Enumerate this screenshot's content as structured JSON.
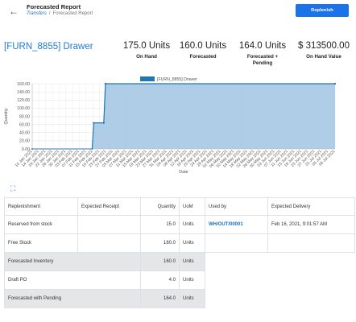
{
  "header": {
    "title": "Forecasted Report",
    "breadcrumb_parent": "Transfers",
    "breadcrumb_separator": "/",
    "breadcrumb_current": "Forecasted Report",
    "replenish_label": "Replenish",
    "back_icon": "arrow-left-icon"
  },
  "product": {
    "name": "[FURN_8855] Drawer"
  },
  "stats": [
    {
      "value": "175.0 Units",
      "label": "On Hand"
    },
    {
      "value": "160.0 Units",
      "label": "Forecasted"
    },
    {
      "value": "164.0 Units",
      "label": "Forecasted + Pending"
    },
    {
      "value": "$ 313500.00",
      "label": "On Hand Value"
    }
  ],
  "chart_data": {
    "type": "line",
    "legend": "[FURN_8855] Drawer",
    "legend_position": "top",
    "xlabel": "Date",
    "ylabel": "Quantity",
    "ylim": [
      0,
      160
    ],
    "y_ticks": [
      "0.00",
      "20.00",
      "40.00",
      "60.00",
      "80.00",
      "100.00",
      "120.00",
      "140.00",
      "160.00"
    ],
    "x_ticks": [
      "10 Jan 2021",
      "14 Jan 2021",
      "18 Jan 2021",
      "22 Jan 2021",
      "26 Jan 2021",
      "30 Jan 2021",
      "03 Feb 2021",
      "07 Feb 2021",
      "11 Feb 2021",
      "15 Feb 2021",
      "19 Feb 2021",
      "23 Feb 2021",
      "27 Feb 2021",
      "03 Mar 2021",
      "07 Mar 2021",
      "11 Mar 2021",
      "15 Mar 2021",
      "19 Mar 2021",
      "23 Mar 2021",
      "27 Mar 2021",
      "31 Mar 2021",
      "04 Apr 2021",
      "08 Apr 2021",
      "12 Apr 2021",
      "16 Apr 2021",
      "20 Apr 2021",
      "24 Apr 2021",
      "28 Apr 2021",
      "02 May 2021",
      "06 May 2021",
      "10 May 2021",
      "14 May 2021",
      "18 May 2021",
      "22 May 2021",
      "26 May 2021",
      "30 May 2021",
      "03 Jun 2021",
      "07 Jun 2021",
      "11 Jun 2021",
      "15 Jun 2021",
      "19 Jun 2021",
      "23 Jun 2021",
      "27 Jun 2021",
      "01 Jul 2021",
      "05 Jul 2021",
      "09 Jul 2021"
    ],
    "series": [
      {
        "name": "[FURN_8855] Drawer",
        "color": "#1f77b4",
        "fill": "#a6c8e4",
        "points": [
          {
            "x": "2021-01-10",
            "y": 0
          },
          {
            "x": "2021-02-15",
            "y": 0
          },
          {
            "x": "2021-02-16",
            "y": 64
          },
          {
            "x": "2021-02-22",
            "y": 64
          },
          {
            "x": "2021-02-23",
            "y": 160
          },
          {
            "x": "2021-07-11",
            "y": 160
          }
        ]
      }
    ],
    "grid": true
  },
  "table": {
    "headers": [
      "Replenishment",
      "Expected Receipt",
      "Quantity",
      "UoM",
      "Used by",
      "Expected Delivery"
    ],
    "rows": [
      {
        "label": "Reserved from stock",
        "receipt": "",
        "qty": "15.0",
        "uom": "Units",
        "used_by": "WH/OUT/00001",
        "delivery": "Feb 16, 2021, 9:01:57 AM"
      },
      {
        "label": "Free Stock",
        "receipt": "",
        "qty": "160.0",
        "uom": "Units"
      },
      {
        "label": "Forecasted Inventory",
        "qty": "160.0",
        "uom": "Units"
      },
      {
        "label": "Draft PO",
        "qty": "4.0",
        "uom": "Units"
      },
      {
        "label": "Forecasted with Pending",
        "qty": "164.0",
        "uom": "Units"
      }
    ]
  }
}
